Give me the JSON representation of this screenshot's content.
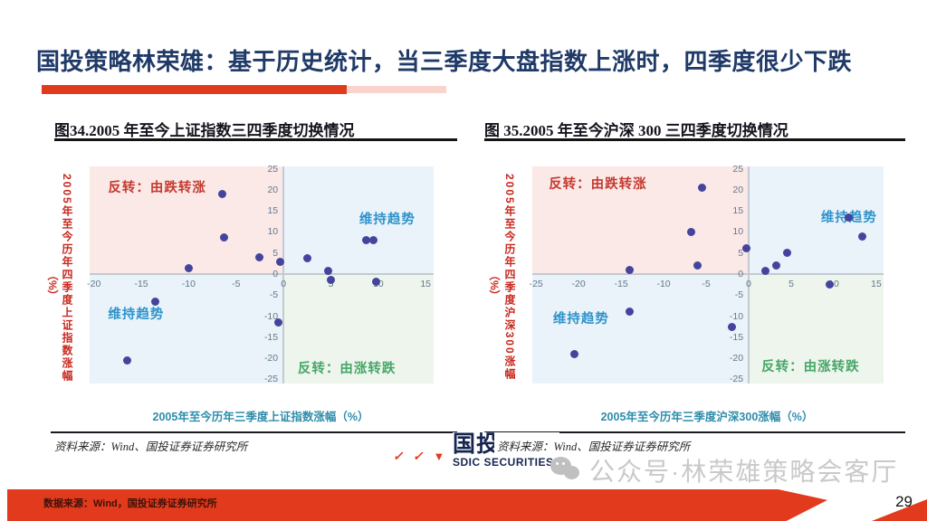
{
  "header": {
    "title": "国投策略林荣雄：基于历史统计，当三季度大盘指数上涨时，四季度很少下跌"
  },
  "chart_data": [
    {
      "type": "scatter",
      "title": "图34.2005 年至今上证指数三四季度切换情况",
      "xlabel": "2005年至今历年三季度上证指数涨幅（%）",
      "ylabel": "2005年至今历年四季度上证指数涨幅",
      "ylabel_unit": "（%）",
      "xlim": [
        -20,
        15
      ],
      "ylim": [
        -25,
        25
      ],
      "xticks": [
        -20,
        -15,
        -10,
        -5,
        0,
        5,
        10,
        15
      ],
      "yticks": [
        25,
        20,
        15,
        10,
        5,
        0,
        -5,
        -10,
        -15,
        -20,
        -25
      ],
      "points": [
        [
          -16.5,
          -20.5
        ],
        [
          -13.5,
          -6.5
        ],
        [
          -10,
          1.5
        ],
        [
          -6.5,
          19
        ],
        [
          -6.3,
          8.7
        ],
        [
          -2.5,
          4
        ],
        [
          -0.5,
          -11.5
        ],
        [
          -0.3,
          3
        ],
        [
          2.5,
          3.7
        ],
        [
          4.7,
          0.7
        ],
        [
          5,
          -1.5
        ],
        [
          8.7,
          8
        ],
        [
          9.5,
          8
        ],
        [
          9.8,
          -1.8
        ]
      ],
      "quadrant_labels": [
        {
          "text": "反转：由跌转涨",
          "x": -18.5,
          "y": 21,
          "color_key": "label_red"
        },
        {
          "text": "维持趋势",
          "x": 8,
          "y": 13.5,
          "color_key": "label_blue"
        },
        {
          "text": "维持趋势",
          "x": -18.5,
          "y": -9,
          "color_key": "label_blue"
        },
        {
          "text": "反转：由涨转跌",
          "x": 1.5,
          "y": -22,
          "color_key": "label_green"
        }
      ],
      "source": "资料来源：Wind、国投证券证券研究所",
      "legend": "none",
      "grid": "off"
    },
    {
      "type": "scatter",
      "title": "图 35.2005 年至今沪深 300 三四季度切换情况",
      "xlabel": "2005年至今历年三季度沪深300涨幅（%）",
      "ylabel": "2005年至今历年四季度沪深300涨幅",
      "ylabel_unit": "（%）",
      "xlim": [
        -25,
        15
      ],
      "ylim": [
        -25,
        25
      ],
      "xticks": [
        -25,
        -20,
        -15,
        -10,
        -5,
        0,
        5,
        10,
        15
      ],
      "yticks": [
        25,
        20,
        15,
        10,
        5,
        0,
        -5,
        -10,
        -15,
        -20,
        -25
      ],
      "points": [
        [
          -20.5,
          -19
        ],
        [
          -14,
          -9
        ],
        [
          -14,
          1
        ],
        [
          -6.8,
          10
        ],
        [
          -6,
          2
        ],
        [
          -5.5,
          20.5
        ],
        [
          -2,
          -12.5
        ],
        [
          -0.3,
          6.2
        ],
        [
          2,
          0.8
        ],
        [
          3.2,
          2
        ],
        [
          4.5,
          5
        ],
        [
          9.5,
          -2.5
        ],
        [
          11.7,
          13.5
        ],
        [
          13.3,
          9
        ]
      ],
      "quadrant_labels": [
        {
          "text": "反转：由跌转涨",
          "x": -23.5,
          "y": 22,
          "color_key": "label_red"
        },
        {
          "text": "维持趋势",
          "x": 8.5,
          "y": 14,
          "color_key": "label_blue"
        },
        {
          "text": "维持趋势",
          "x": -23,
          "y": -10,
          "color_key": "label_blue"
        },
        {
          "text": "反转：由涨转跌",
          "x": 1.5,
          "y": -21.5,
          "color_key": "label_green"
        }
      ],
      "source": "资料来源：Wind、国投证券证券研究所",
      "legend": "none",
      "grid": "off"
    }
  ],
  "logo": {
    "cn": "国投",
    "en": "SDIC SECURITIES"
  },
  "glyphs": {
    "check": "✓",
    "triangle": "▼"
  },
  "watermark": {
    "text": "公众号·林荣雄策略会客厅"
  },
  "footer": {
    "data_source": "数据来源：Wind，国投证券证券研究所",
    "page_number": "29"
  },
  "theme": {
    "accent_red": "#e23a1d",
    "title_navy": "#203a68",
    "quad_pink": "#fbe9e8",
    "quad_blue": "#e9f3f9",
    "quad_green": "#eef5ed",
    "point": "#45449c",
    "label_red": "#c53a2e",
    "label_blue": "#2f93cc",
    "label_green": "#47a768",
    "axis_label_teal": "#2e8cab",
    "ylabel_red": "#c8281e",
    "tick_gray": "#64788a",
    "axis_line": "#c3cad1"
  }
}
